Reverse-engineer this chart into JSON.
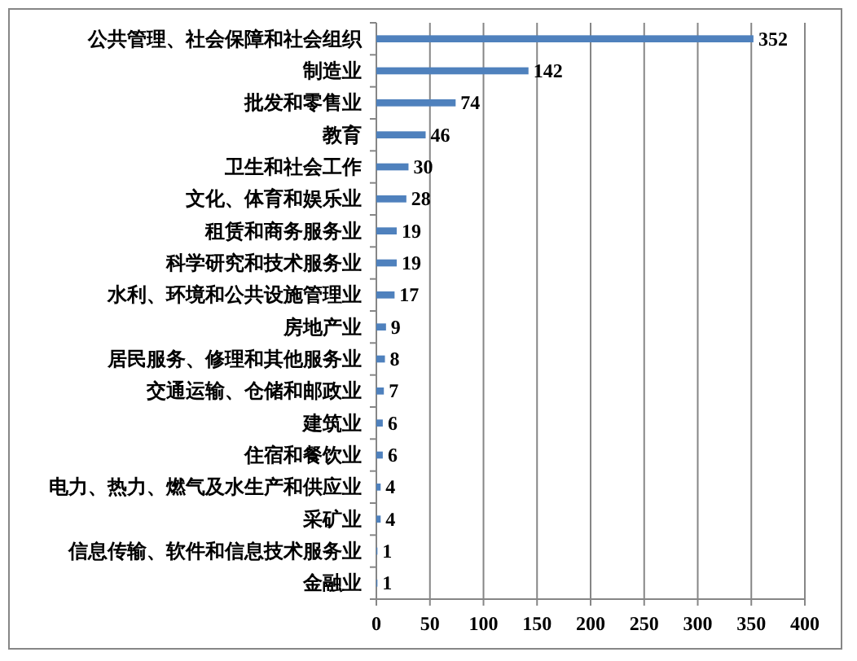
{
  "chart_data": {
    "type": "bar",
    "orientation": "horizontal",
    "categories": [
      "公共管理、社会保障和社会组织",
      "制造业",
      "批发和零售业",
      "教育",
      "卫生和社会工作",
      "文化、体育和娱乐业",
      "租赁和商务服务业",
      "科学研究和技术服务业",
      "水利、环境和公共设施管理业",
      "房地产业",
      "居民服务、修理和其他服务业",
      "交通运输、仓储和邮政业",
      "建筑业",
      "住宿和餐饮业",
      "电力、热力、燃气及水生产和供应业",
      "采矿业",
      "信息传输、软件和信息技术服务业",
      "金融业"
    ],
    "values": [
      352,
      142,
      74,
      46,
      30,
      28,
      19,
      19,
      17,
      9,
      8,
      7,
      6,
      6,
      4,
      4,
      1,
      1
    ],
    "color": "#4f81bd",
    "xlim": [
      0,
      400
    ],
    "xticks": [
      0,
      50,
      100,
      150,
      200,
      250,
      300,
      350,
      400
    ],
    "grid": "x",
    "data_labels": true
  }
}
